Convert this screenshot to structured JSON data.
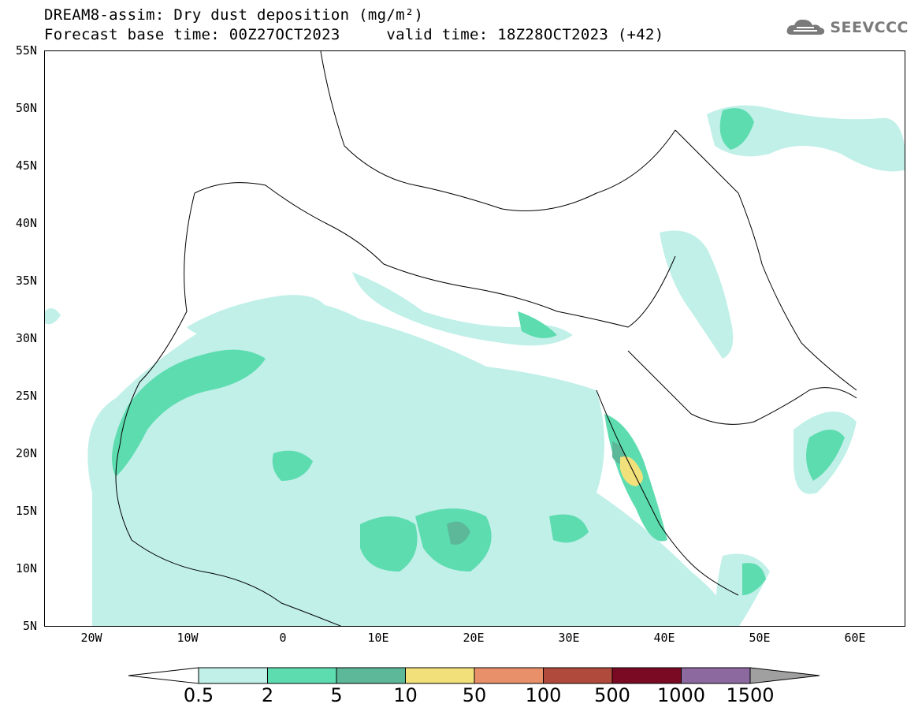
{
  "header": {
    "title_line1": "DREAM8-assim: Dry dust deposition (mg/m²)",
    "title_line2": "Forecast base time: 00Z27OCT2023     valid time: 18Z28OCT2023 (+42)",
    "brand": "SEEVCCC",
    "brand_icon": "cloud-logo-icon"
  },
  "map": {
    "lat_labels": [
      "55N",
      "50N",
      "45N",
      "40N",
      "35N",
      "30N",
      "25N",
      "20N",
      "15N",
      "10N",
      "5N"
    ],
    "lon_labels": [
      "20W",
      "10W",
      "0",
      "10E",
      "20E",
      "30E",
      "40E",
      "50E",
      "60E"
    ],
    "colors": {
      "c0_5": "#c0f0e8",
      "c2": "#5ddcb0",
      "c5": "#5cb898",
      "c10": "#f2e07a",
      "coast": "#000000"
    }
  },
  "legend": {
    "labels": [
      "0.5",
      "2",
      "5",
      "10",
      "50",
      "100",
      "500",
      "1000",
      "1500"
    ],
    "colors": [
      "#c0f0e8",
      "#5ddcb0",
      "#5cb898",
      "#f2e07a",
      "#e8906a",
      "#b04a3c",
      "#7a0a24",
      "#8c6aa0",
      "#a0a0a0"
    ]
  }
}
